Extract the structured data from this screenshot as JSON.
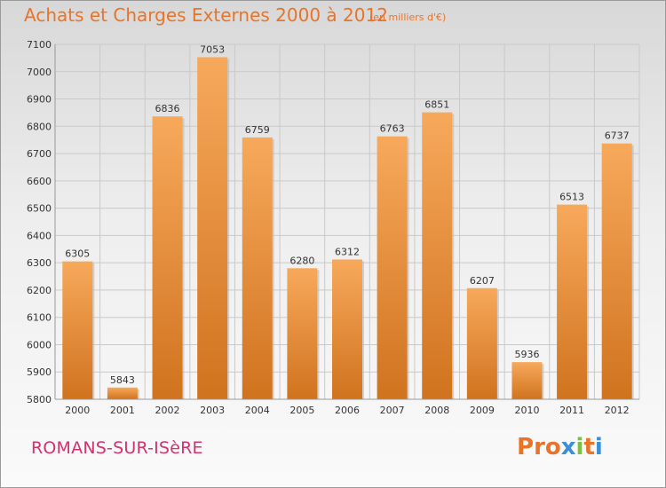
{
  "header": {
    "title": "Achats et Charges Externes 2000 à 2012",
    "unit": "(en milliers d'€)"
  },
  "footer": {
    "commune": "ROMANS-SUR-ISèRE",
    "logo": [
      "P",
      "r",
      "o",
      "x",
      "i",
      "t",
      "i"
    ]
  },
  "colors": {
    "title": "#e8742a",
    "bar_light": "#f7a95b",
    "bar_dark": "#d0731f",
    "commune": "#d2326e",
    "grid": "#c9c9c9",
    "logo": [
      "#e8742a",
      "#e8742a",
      "#e8742a",
      "#3a8fd6",
      "#7ac143",
      "#e8742a",
      "#3a8fd6"
    ]
  },
  "chart_data": {
    "type": "bar",
    "title": "Achats et Charges Externes 2000 à 2012",
    "subtitle": "(en milliers d'€)",
    "xlabel": "",
    "ylabel": "",
    "categories": [
      "2000",
      "2001",
      "2002",
      "2003",
      "2004",
      "2005",
      "2006",
      "2007",
      "2008",
      "2009",
      "2010",
      "2011",
      "2012"
    ],
    "values": [
      6305,
      5843,
      6836,
      7053,
      6759,
      6280,
      6312,
      6763,
      6851,
      6207,
      5936,
      6513,
      6737
    ],
    "ylim": [
      5800,
      7100
    ],
    "yticks": [
      5800,
      5900,
      6000,
      6100,
      6200,
      6300,
      6400,
      6500,
      6600,
      6700,
      6800,
      6900,
      7000,
      7100
    ],
    "grid": true,
    "legend": "none"
  }
}
